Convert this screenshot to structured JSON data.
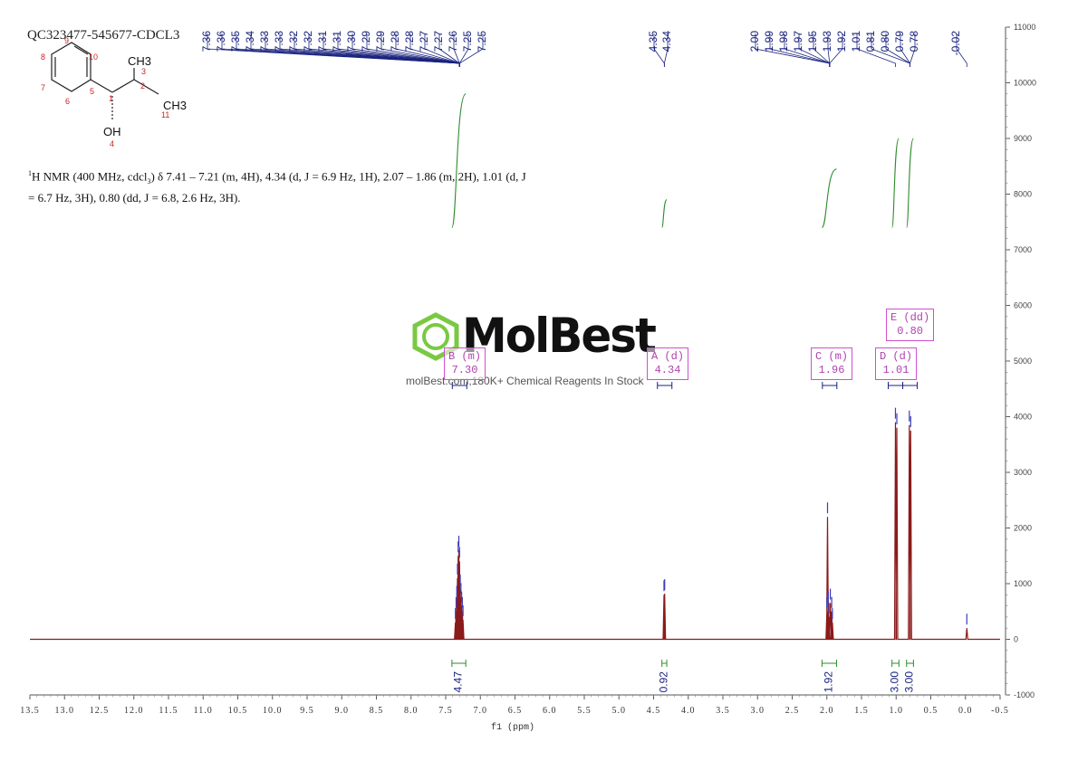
{
  "sample_id": "QC323477-545677-CDCL3",
  "nmr_description": {
    "prefix": "1",
    "line1": "H NMR (400 MHz, cdcl",
    "sub": "3",
    "line1b": ") δ 7.41 – 7.21 (m, 4H), 4.34 (d, J = 6.9 Hz, 1H), 2.07 – 1.86 (m, 2H), 1.01 (d, J",
    "line2": "= 6.7 Hz, 3H), 0.80 (dd, J = 6.8, 2.6 Hz, 3H)."
  },
  "molecule_labels": {
    "ch3_top": "CH3",
    "ch3_right": "CH3",
    "oh": "OH",
    "atom_numbers": [
      "1",
      "2",
      "3",
      "4",
      "5",
      "6",
      "7",
      "8",
      "9",
      "10",
      "11"
    ]
  },
  "watermark": {
    "brand": "MolBest",
    "tagline": "molBest.com,180K+ Chemical Reagents In Stock"
  },
  "colors": {
    "spectrum": "#8b1a1a",
    "peak_labels": "#1a237e",
    "integral": "#2e8b2e",
    "multiplet": "#b040b0",
    "logo_green": "#7ac943",
    "atom_number": "#cc2222"
  },
  "chart_data": {
    "type": "line",
    "xlabel": "f1 (ppm)",
    "x_range": [
      13.5,
      -0.5
    ],
    "y_range": [
      -1000,
      11000
    ],
    "x_ticks": [
      "13.5",
      "13.0",
      "12.5",
      "12.0",
      "11.5",
      "11.0",
      "10.5",
      "10.0",
      "9.5",
      "9.0",
      "8.5",
      "8.0",
      "7.5",
      "7.0",
      "6.5",
      "6.0",
      "5.5",
      "5.0",
      "4.5",
      "4.0",
      "3.5",
      "3.0",
      "2.5",
      "2.0",
      "1.5",
      "1.0",
      "0.5",
      "0.0",
      "-0.5"
    ],
    "y_ticks": [
      "-1000",
      "0",
      "1000",
      "2000",
      "3000",
      "4000",
      "5000",
      "6000",
      "7000",
      "8000",
      "9000",
      "10000",
      "11000"
    ],
    "peak_labels": [
      {
        "group": "aromatic",
        "ppm": 7.3,
        "labels": [
          "7.36",
          "7.36",
          "7.35",
          "7.34",
          "7.33",
          "7.33",
          "7.32",
          "7.32",
          "7.31",
          "7.31",
          "7.30",
          "7.29",
          "7.29",
          "7.28",
          "7.28",
          "7.27",
          "7.27",
          "7.26",
          "7.25",
          "7.25"
        ]
      },
      {
        "group": "ch_oh",
        "ppm": 4.345,
        "labels": [
          "4.35",
          "4.34"
        ]
      },
      {
        "group": "aliphatic",
        "ppm": 1.4,
        "labels": [
          "2.00",
          "1.99",
          "1.98",
          "1.97",
          "1.95",
          "1.93",
          "1.92",
          "1.01",
          "0.81",
          "0.80",
          "0.79",
          "0.78"
        ]
      },
      {
        "group": "ref",
        "ppm": -0.02,
        "labels": [
          "-0.02"
        ]
      }
    ],
    "peaks": [
      {
        "ppm": 7.36,
        "h": 300
      },
      {
        "ppm": 7.35,
        "h": 500
      },
      {
        "ppm": 7.34,
        "h": 700
      },
      {
        "ppm": 7.33,
        "h": 1100
      },
      {
        "ppm": 7.32,
        "h": 1500
      },
      {
        "ppm": 7.31,
        "h": 1600
      },
      {
        "ppm": 7.3,
        "h": 1400
      },
      {
        "ppm": 7.29,
        "h": 900
      },
      {
        "ppm": 7.28,
        "h": 750
      },
      {
        "ppm": 7.27,
        "h": 600
      },
      {
        "ppm": 7.26,
        "h": 500
      },
      {
        "ppm": 7.25,
        "h": 350
      },
      {
        "ppm": 4.35,
        "h": 800
      },
      {
        "ppm": 4.34,
        "h": 820
      },
      {
        "ppm": 2.0,
        "h": 500
      },
      {
        "ppm": 1.99,
        "h": 2200
      },
      {
        "ppm": 1.98,
        "h": 600
      },
      {
        "ppm": 1.97,
        "h": 400
      },
      {
        "ppm": 1.95,
        "h": 650
      },
      {
        "ppm": 1.93,
        "h": 500
      },
      {
        "ppm": 1.92,
        "h": 300
      },
      {
        "ppm": 1.01,
        "h": 3900
      },
      {
        "ppm": 0.99,
        "h": 3800
      },
      {
        "ppm": 0.81,
        "h": 3850
      },
      {
        "ppm": 0.79,
        "h": 3750
      },
      {
        "ppm": -0.02,
        "h": 200
      }
    ],
    "integrals": [
      {
        "from": 7.41,
        "to": 7.21,
        "value": "4.47",
        "top": 9800,
        "bottom": 7400
      },
      {
        "from": 4.38,
        "to": 4.31,
        "value": "0.92",
        "top": 7900,
        "bottom": 7400
      },
      {
        "from": 2.07,
        "to": 1.86,
        "value": "1.92",
        "top": 8450,
        "bottom": 7400
      },
      {
        "from": 1.06,
        "to": 0.96,
        "value": "3.00",
        "top": 9000,
        "bottom": 7400
      },
      {
        "from": 0.85,
        "to": 0.75,
        "value": "3.00",
        "top": 9000,
        "bottom": 7400
      }
    ],
    "multiplets": [
      {
        "letter": "B (m)",
        "shift": "7.30",
        "ppm": 7.3
      },
      {
        "letter": "A (d)",
        "shift": "4.34",
        "ppm": 4.34
      },
      {
        "letter": "C (m)",
        "shift": "1.96",
        "ppm": 1.96
      },
      {
        "letter": "D (d)",
        "shift": "1.01",
        "ppm": 1.01
      },
      {
        "letter": "E (dd)",
        "shift": "0.80",
        "ppm": 0.8
      }
    ]
  }
}
